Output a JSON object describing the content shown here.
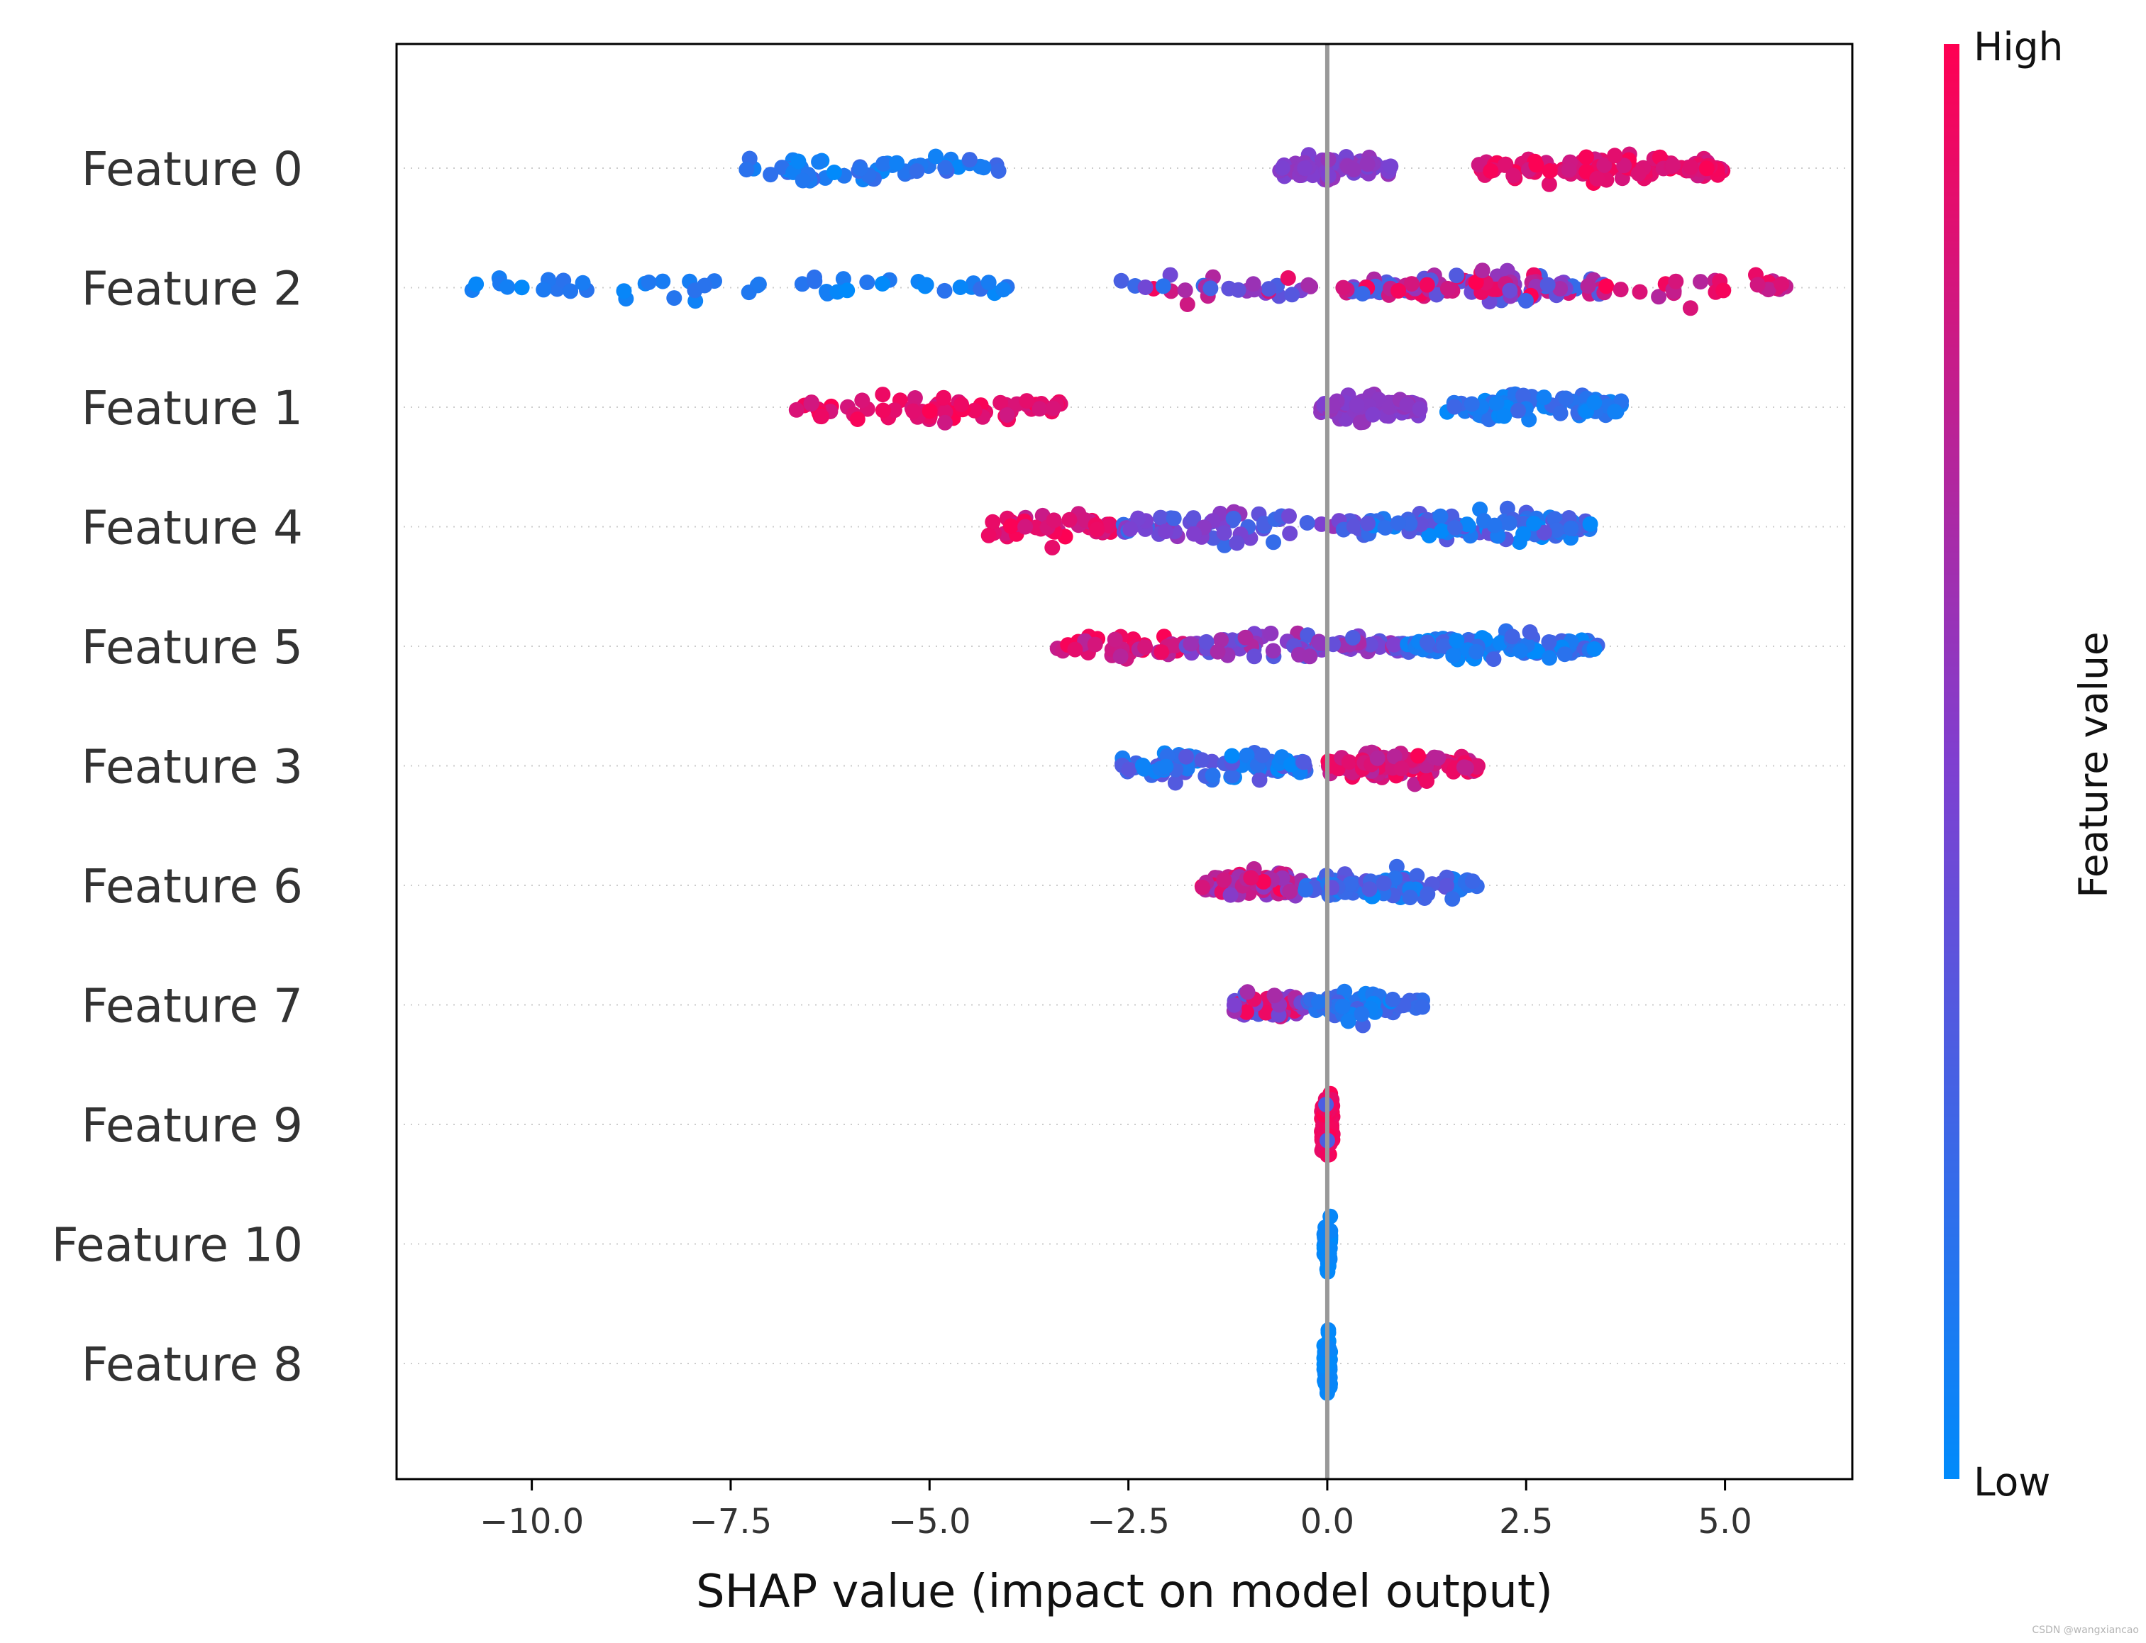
{
  "chart_data": {
    "type": "scatter",
    "subtype": "shap-beeswarm",
    "xlabel": "SHAP value (impact on model output)",
    "xlim": [
      -11.7,
      6.6
    ],
    "xticks": [
      -10.0,
      -7.5,
      -5.0,
      -2.5,
      0.0,
      2.5,
      5.0
    ],
    "xtick_labels": [
      "−10.0",
      "−7.5",
      "−5.0",
      "−2.5",
      "0.0",
      "2.5",
      "5.0"
    ],
    "vline_at": 0.0,
    "colorbar": {
      "title": "Feature value",
      "high_label": "High",
      "low_label": "Low",
      "low_color": "#008bfb",
      "high_color": "#ff0052"
    },
    "features": [
      {
        "name": "Feature 0",
        "clusters": [
          {
            "range": [
              -7.6,
              -4.1
            ],
            "n": 55,
            "value": [
              0.0,
              0.25
            ]
          },
          {
            "range": [
              -0.6,
              0.8
            ],
            "n": 60,
            "value": [
              0.45,
              0.6
            ]
          },
          {
            "range": [
              1.9,
              5.0
            ],
            "n": 110,
            "value": [
              0.8,
              1.0
            ]
          }
        ]
      },
      {
        "name": "Feature 2",
        "clusters": [
          {
            "range": [
              -10.8,
              -3.9
            ],
            "n": 50,
            "value": [
              0.0,
              0.2
            ]
          },
          {
            "range": [
              -2.6,
              -0.2
            ],
            "n": 30,
            "value": [
              0.0,
              1.0
            ]
          },
          {
            "range": [
              0.2,
              3.5
            ],
            "n": 120,
            "value": [
              0.2,
              1.0
            ]
          },
          {
            "range": [
              3.5,
              5.8
            ],
            "n": 25,
            "value": [
              0.7,
              1.0
            ]
          }
        ]
      },
      {
        "name": "Feature 1",
        "clusters": [
          {
            "range": [
              -6.7,
              -3.3
            ],
            "n": 70,
            "value": [
              0.8,
              1.0
            ]
          },
          {
            "range": [
              -0.1,
              1.2
            ],
            "n": 70,
            "value": [
              0.5,
              0.6
            ]
          },
          {
            "range": [
              1.5,
              3.7
            ],
            "n": 90,
            "value": [
              0.0,
              0.25
            ]
          }
        ]
      },
      {
        "name": "Feature 4",
        "clusters": [
          {
            "range": [
              -4.3,
              -2.7
            ],
            "n": 45,
            "value": [
              0.75,
              1.0
            ]
          },
          {
            "range": [
              -2.7,
              0.5
            ],
            "n": 70,
            "value": [
              0.2,
              0.6
            ]
          },
          {
            "range": [
              0.5,
              3.4
            ],
            "n": 110,
            "value": [
              0.0,
              0.4
            ]
          }
        ]
      },
      {
        "name": "Feature 5",
        "clusters": [
          {
            "range": [
              -3.4,
              -1.8
            ],
            "n": 40,
            "value": [
              0.7,
              1.0
            ]
          },
          {
            "range": [
              -1.8,
              1.0
            ],
            "n": 80,
            "value": [
              0.3,
              0.7
            ]
          },
          {
            "range": [
              1.0,
              3.4
            ],
            "n": 100,
            "value": [
              0.0,
              0.3
            ]
          }
        ]
      },
      {
        "name": "Feature 3",
        "clusters": [
          {
            "range": [
              -2.6,
              -0.2
            ],
            "n": 90,
            "value": [
              0.0,
              0.4
            ]
          },
          {
            "range": [
              0.0,
              1.9
            ],
            "n": 110,
            "value": [
              0.7,
              1.0
            ]
          }
        ]
      },
      {
        "name": "Feature 6",
        "clusters": [
          {
            "range": [
              -1.6,
              -0.3
            ],
            "n": 80,
            "value": [
              0.5,
              1.0
            ]
          },
          {
            "range": [
              -0.3,
              1.9
            ],
            "n": 90,
            "value": [
              0.0,
              0.4
            ]
          }
        ]
      },
      {
        "name": "Feature 7",
        "clusters": [
          {
            "range": [
              -1.2,
              -0.3
            ],
            "n": 70,
            "value": [
              0.3,
              1.0
            ]
          },
          {
            "range": [
              -0.3,
              1.2
            ],
            "n": 60,
            "value": [
              0.0,
              0.3
            ]
          }
        ]
      },
      {
        "name": "Feature 9",
        "clusters": [
          {
            "range": [
              -0.07,
              0.07
            ],
            "n": 90,
            "value": [
              0.9,
              1.0
            ]
          },
          {
            "range": [
              -0.05,
              0.05
            ],
            "n": 2,
            "value": [
              0.3,
              0.3
            ]
          }
        ]
      },
      {
        "name": "Feature 10",
        "clusters": [
          {
            "range": [
              -0.04,
              0.04
            ],
            "n": 80,
            "value": [
              0.0,
              0.05
            ]
          }
        ]
      },
      {
        "name": "Feature 8",
        "clusters": [
          {
            "range": [
              -0.04,
              0.04
            ],
            "n": 80,
            "value": [
              0.0,
              0.05
            ]
          }
        ]
      }
    ]
  },
  "watermark": "CSDN @wangxiancao"
}
